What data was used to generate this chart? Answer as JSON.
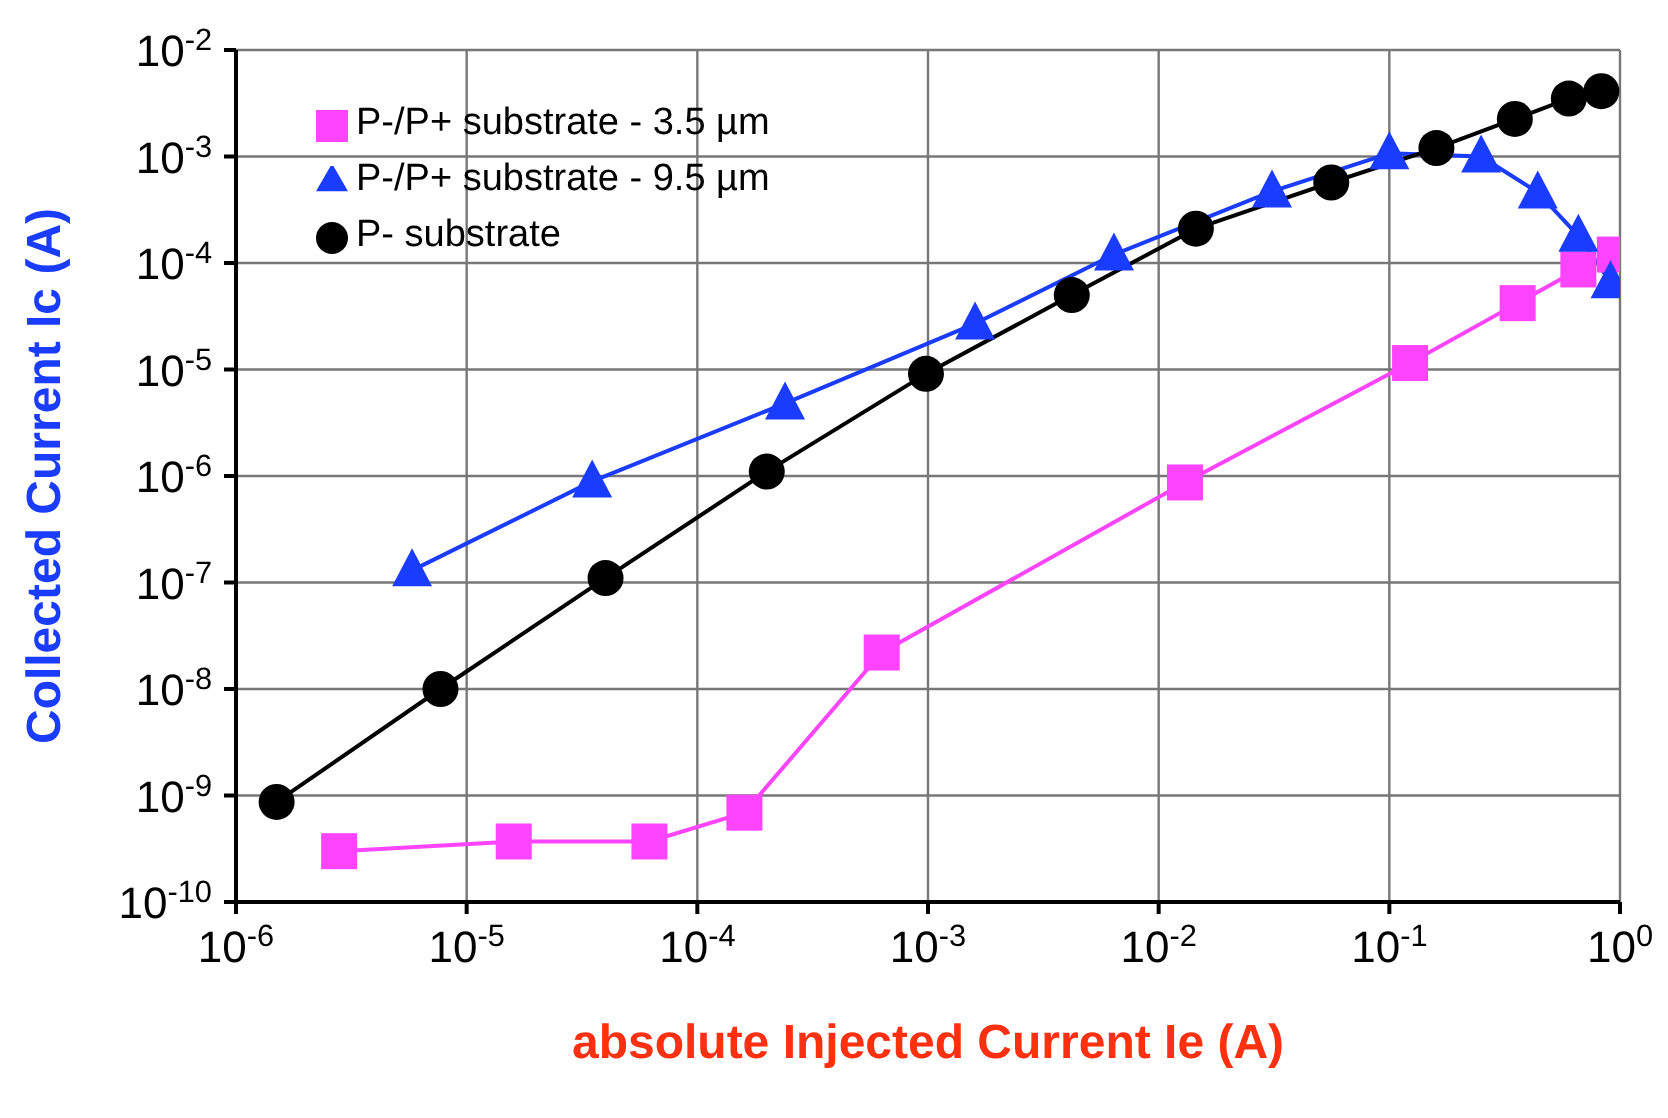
{
  "chart_data": {
    "type": "line",
    "xlabel": "absolute Injected Current Ie (A)",
    "ylabel": "Collected Current Ic (A)",
    "log": "xy",
    "grid": true,
    "legend": "top left",
    "line_style": "solid",
    "xlim": [
      1e-06,
      1
    ],
    "ylim": [
      1e-10,
      0.01
    ],
    "xticks": [
      {
        "value": 1e-06,
        "label": "10$^{-6}$"
      },
      {
        "value": 1e-05,
        "label": "10$^{-5}$"
      },
      {
        "value": 0.0001,
        "label": "10$^{-4}$"
      },
      {
        "value": 0.001,
        "label": "10$^{-3}$"
      },
      {
        "value": 0.01,
        "label": "10$^{-2}$"
      },
      {
        "value": 0.1,
        "label": "10$^{-1}$"
      },
      {
        "value": 1,
        "label": "10$^{0}$"
      }
    ],
    "yticks": [
      {
        "value": 1e-10,
        "label": "10$^{-10}$"
      },
      {
        "value": 1e-09,
        "label": "10$^{-9}$"
      },
      {
        "value": 1e-08,
        "label": "10$^{-8}$"
      },
      {
        "value": 1e-07,
        "label": "10$^{-7}$"
      },
      {
        "value": 1e-06,
        "label": "10$^{-6}$"
      },
      {
        "value": 1e-05,
        "label": "10$^{-5}$"
      },
      {
        "value": 0.0001,
        "label": "10$^{-4}$"
      },
      {
        "value": 0.001,
        "label": "10$^{-3}$"
      },
      {
        "value": 0.01,
        "label": "10$^{-2}$"
      }
    ],
    "series": [
      {
        "name": "P-/P+ substrate - 3.5 µm",
        "color": "#ff44ff",
        "marker": "square",
        "x": [
          2.8e-06,
          1.6e-05,
          6.2e-05,
          0.00016,
          0.00063,
          0.013,
          0.123,
          0.36,
          0.66,
          0.95
        ],
        "values": [
          3e-10,
          3.7e-10,
          3.7e-10,
          6.9e-10,
          2.2e-08,
          8.7e-07,
          1.15e-05,
          4.2e-05,
          8.7e-05,
          0.00012
        ]
      },
      {
        "name": "P-/P+ substrate - 9.5 µm",
        "color": "#1a3cff",
        "marker": "triangle",
        "x": [
          5.8e-06,
          3.5e-05,
          0.00024,
          0.0016,
          0.0064,
          0.031,
          0.1,
          0.25,
          0.44,
          0.66,
          0.91
        ],
        "values": [
          1.3e-07,
          8.9e-07,
          4.8e-06,
          2.7e-05,
          0.00012,
          0.00047,
          0.00107,
          0.001,
          0.00046,
          0.00018,
          6.6e-05
        ]
      },
      {
        "name": "P- substrate",
        "color": "#000000",
        "marker": "circle",
        "x": [
          1.5e-06,
          7.7e-06,
          4e-05,
          0.0002,
          0.00098,
          0.0042,
          0.0145,
          0.056,
          0.16,
          0.35,
          0.6,
          0.83
        ],
        "values": [
          8.7e-10,
          1e-08,
          1.1e-07,
          1.1e-06,
          9.1e-06,
          5e-05,
          0.00021,
          0.00057,
          0.0012,
          0.00225,
          0.0035,
          0.0041
        ]
      }
    ]
  }
}
